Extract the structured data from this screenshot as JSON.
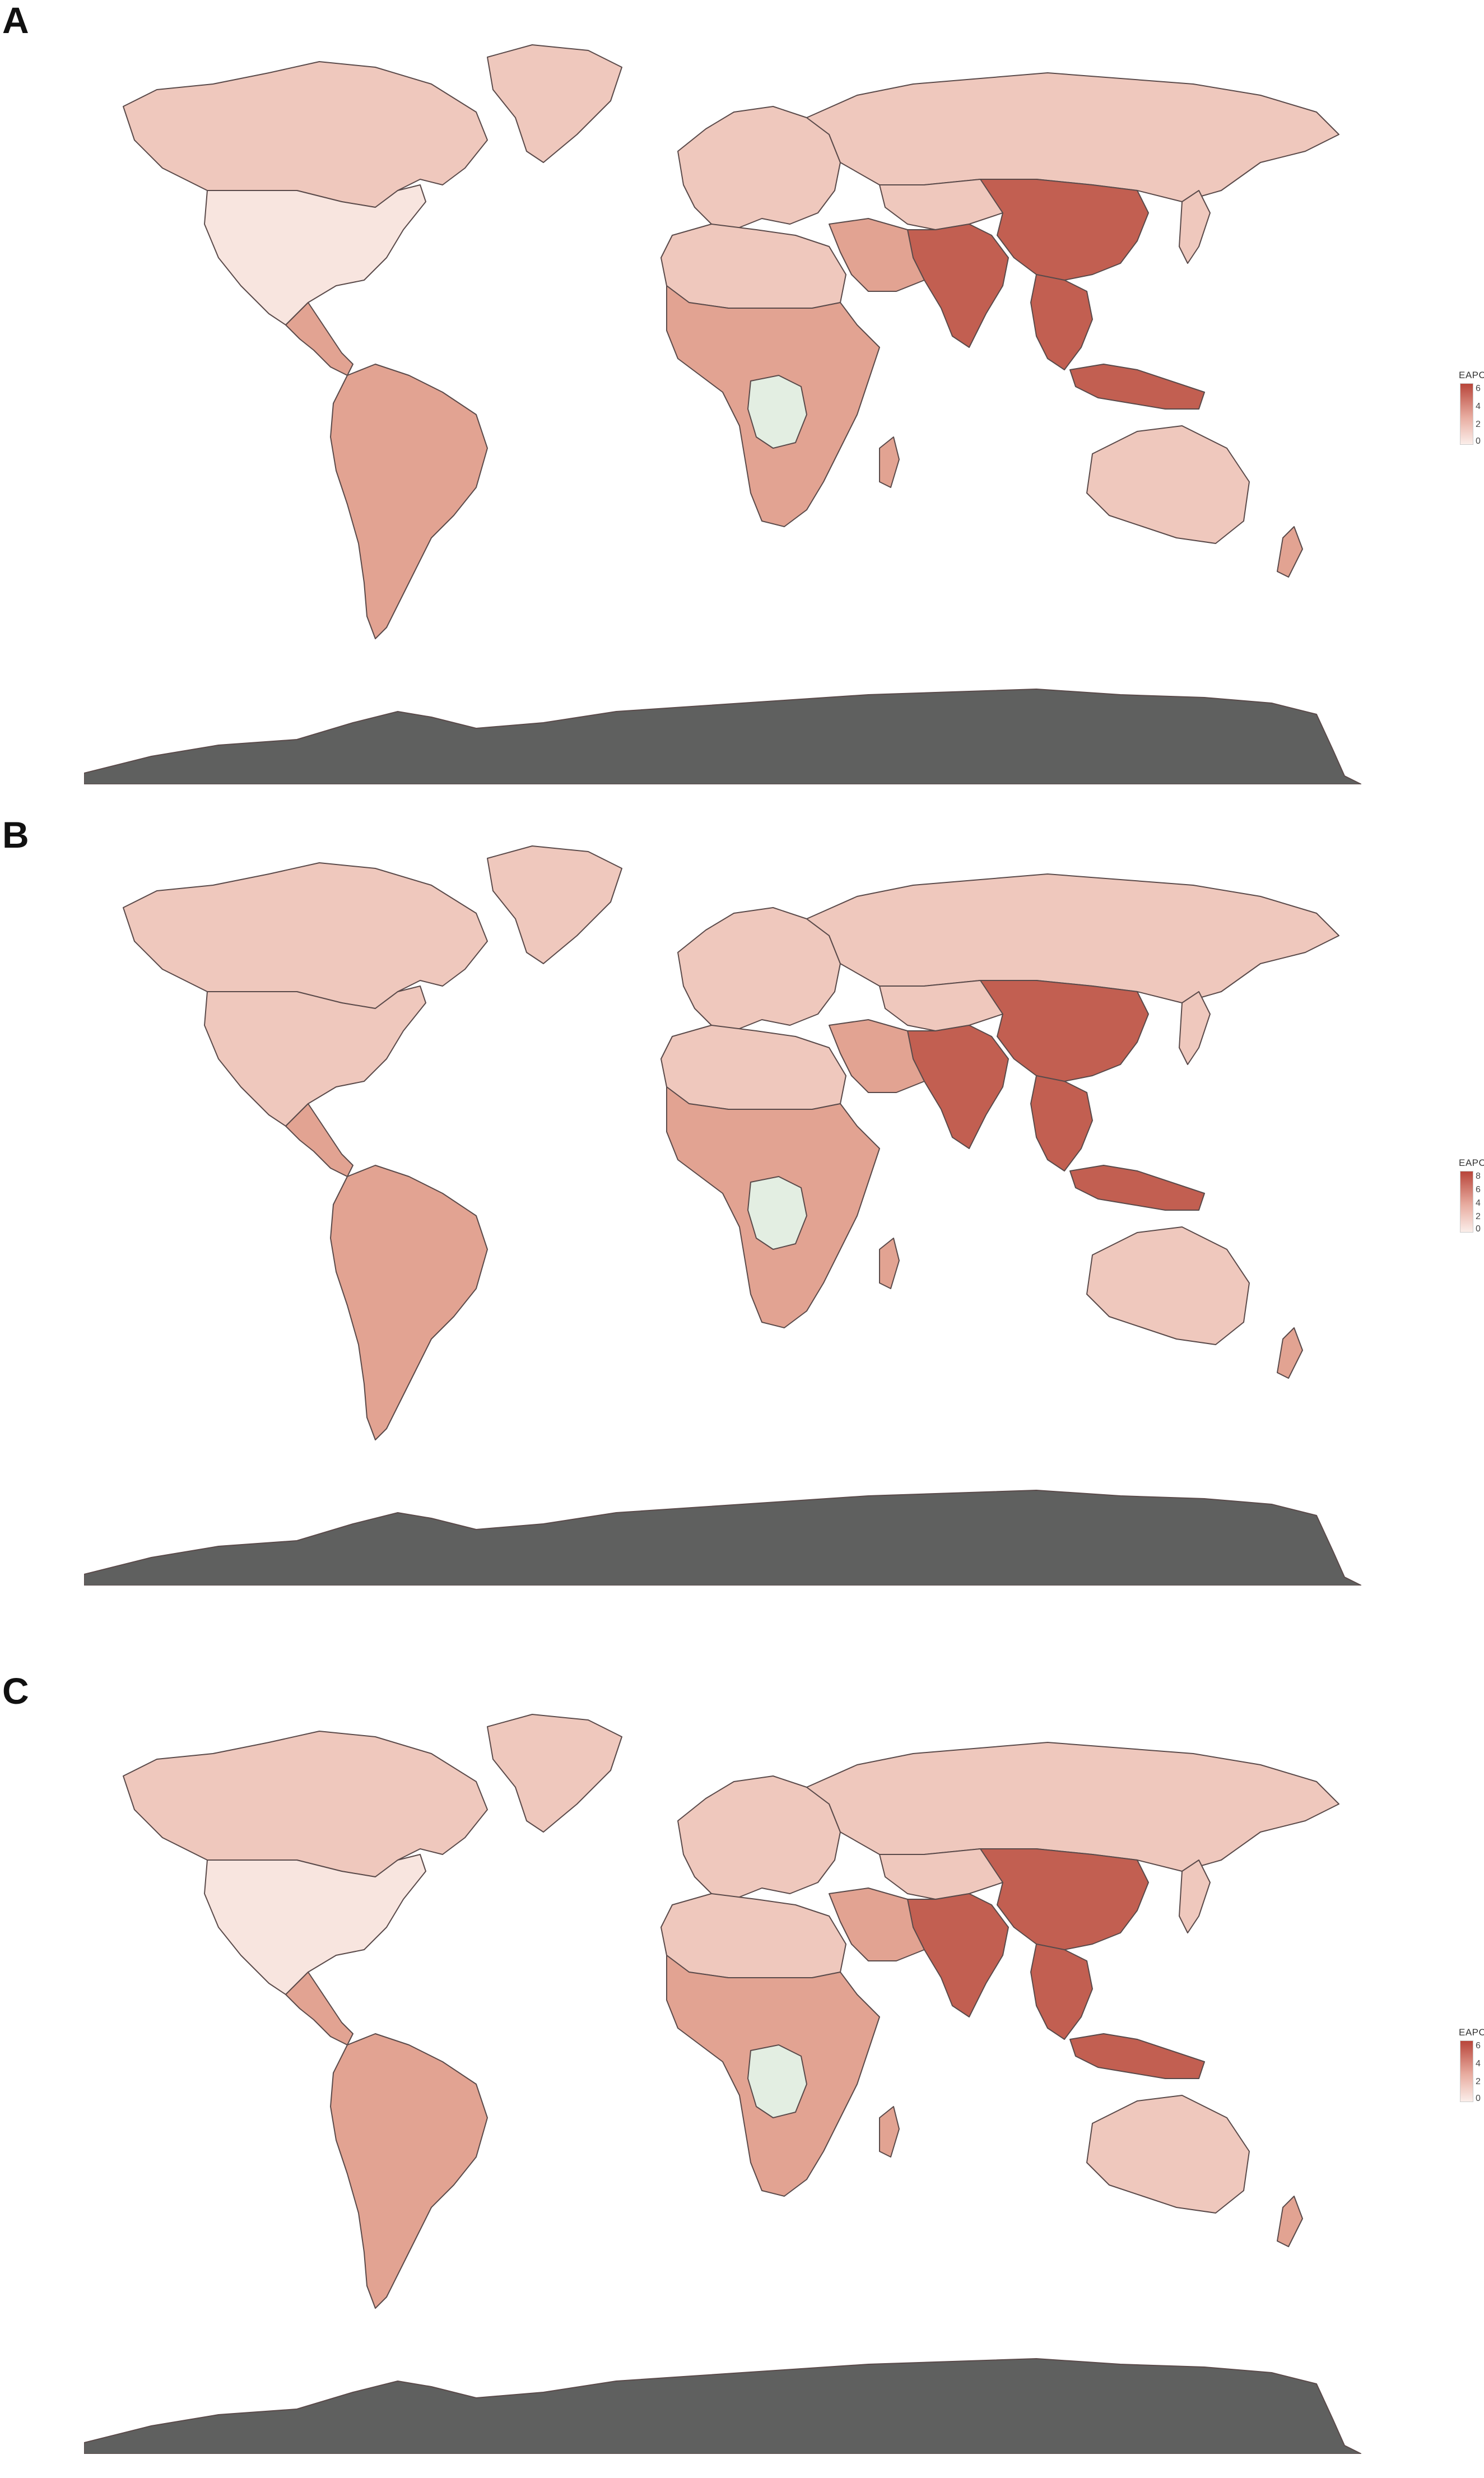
{
  "panels": [
    {
      "letter": "A",
      "legend_title": "EAPC",
      "legend_ticks": [
        "6",
        "4",
        "2",
        "0"
      ]
    },
    {
      "letter": "B",
      "legend_title": "EAPC",
      "legend_ticks": [
        "8",
        "6",
        "4",
        "2",
        "0"
      ]
    },
    {
      "letter": "C",
      "legend_title": "EAPC",
      "legend_ticks": [
        "6",
        "4",
        "2",
        "0"
      ]
    }
  ],
  "colors": {
    "scale_low": "#fbeeea",
    "scale_mid": "#e8aca0",
    "scale_high": "#b8453a",
    "no_data": "#e3eee2",
    "antarctica": "#5f605f",
    "border": "#5a4a4a"
  },
  "regions_shading": {
    "A": {
      "north_america": "pale",
      "canada": "light",
      "greenland": "light",
      "latin_america": "mid",
      "europe": "light",
      "russia": "light",
      "north_africa": "light",
      "sub_saharan_africa": "mid",
      "drc": "no_data",
      "south_asia": "high",
      "china": "high",
      "southeast_asia": "high",
      "australia": "light"
    },
    "B": {
      "north_america": "light",
      "canada": "light",
      "greenland": "light",
      "latin_america": "mid",
      "europe": "light",
      "russia": "light",
      "north_africa": "light",
      "sub_saharan_africa": "mid",
      "drc": "no_data",
      "south_asia": "high",
      "china": "high",
      "southeast_asia": "high",
      "australia": "light"
    },
    "C": {
      "north_america": "pale",
      "canada": "light",
      "greenland": "light",
      "latin_america": "mid",
      "europe": "light",
      "russia": "light",
      "north_africa": "light",
      "sub_saharan_africa": "mid",
      "drc": "no_data",
      "south_asia": "high",
      "china": "high",
      "southeast_asia": "high",
      "australia": "light"
    }
  }
}
